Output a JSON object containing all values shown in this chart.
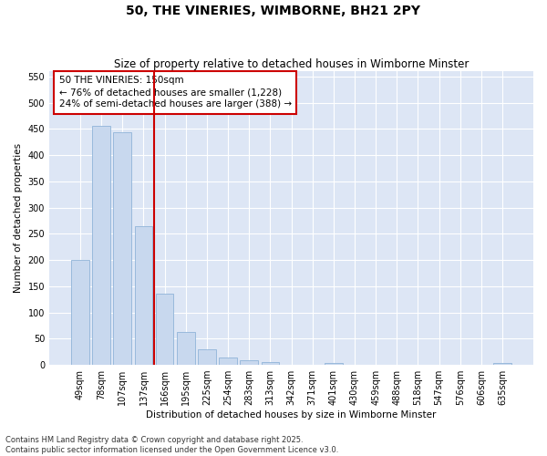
{
  "title": "50, THE VINERIES, WIMBORNE, BH21 2PY",
  "subtitle": "Size of property relative to detached houses in Wimborne Minster",
  "xlabel": "Distribution of detached houses by size in Wimborne Minster",
  "ylabel": "Number of detached properties",
  "categories": [
    "49sqm",
    "78sqm",
    "107sqm",
    "137sqm",
    "166sqm",
    "195sqm",
    "225sqm",
    "254sqm",
    "283sqm",
    "313sqm",
    "342sqm",
    "371sqm",
    "401sqm",
    "430sqm",
    "459sqm",
    "488sqm",
    "518sqm",
    "547sqm",
    "576sqm",
    "606sqm",
    "635sqm"
  ],
  "values": [
    201,
    456,
    443,
    264,
    136,
    62,
    30,
    14,
    8,
    5,
    0,
    0,
    4,
    0,
    0,
    0,
    0,
    0,
    0,
    0,
    4
  ],
  "bar_color": "#c8d8ee",
  "bar_edge_color": "#90b4d8",
  "vline_x": 3.5,
  "vline_color": "#cc0000",
  "annotation_text": "50 THE VINERIES: 150sqm\n← 76% of detached houses are smaller (1,228)\n24% of semi-detached houses are larger (388) →",
  "annotation_box_color": "#ffffff",
  "annotation_box_edge": "#cc0000",
  "ylim": [
    0,
    560
  ],
  "yticks": [
    0,
    50,
    100,
    150,
    200,
    250,
    300,
    350,
    400,
    450,
    500,
    550
  ],
  "fig_bg_color": "#ffffff",
  "plot_bg_color": "#dde6f5",
  "grid_color": "#ffffff",
  "footer": "Contains HM Land Registry data © Crown copyright and database right 2025.\nContains public sector information licensed under the Open Government Licence v3.0.",
  "title_fontsize": 10,
  "subtitle_fontsize": 8.5,
  "axis_label_fontsize": 7.5,
  "tick_fontsize": 7,
  "annotation_fontsize": 7.5,
  "footer_fontsize": 6
}
